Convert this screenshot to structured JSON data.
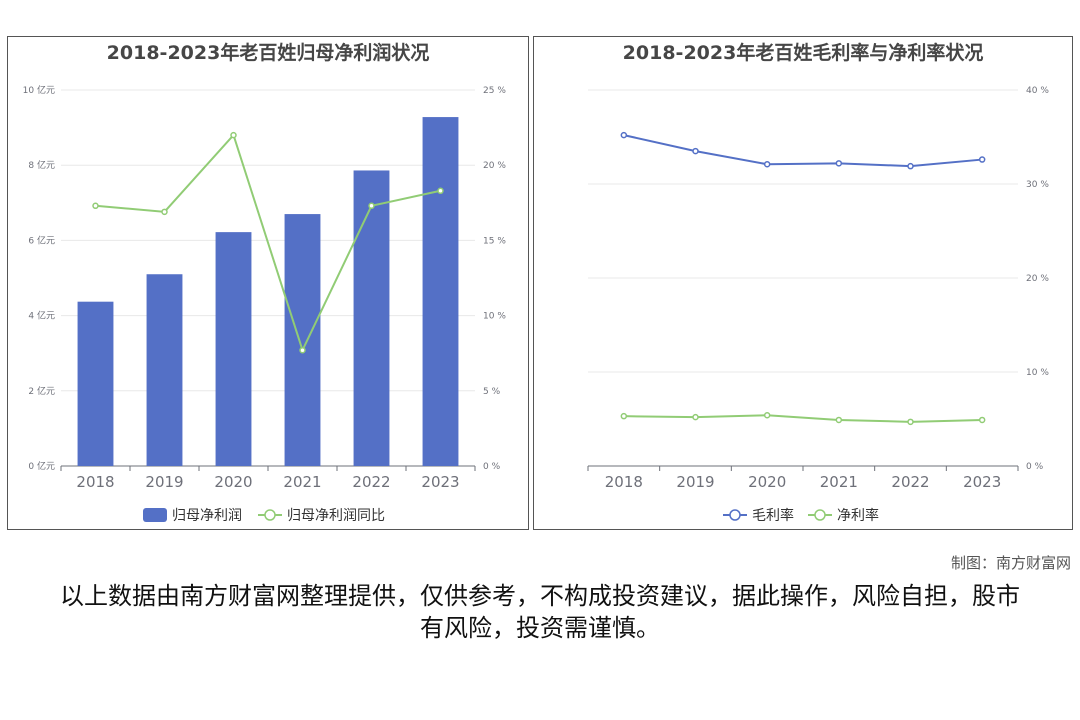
{
  "credit": "制图：南方财富网",
  "disclaimer": "以上数据由南方财富网整理提供，仅供参考，不构成投资建议，据此操作，风险自担，股市有风险，投资需谨慎。",
  "colors": {
    "bar": "#5470c6",
    "line_green": "#91cc75",
    "line_blue": "#5470c6",
    "grid": "#e8e8e8",
    "axis": "#6e7079"
  },
  "chart_data": [
    {
      "type": "bar",
      "title": "2018-2023年老百姓归母净利润状况",
      "categories": [
        "2018",
        "2019",
        "2020",
        "2021",
        "2022",
        "2023"
      ],
      "y_left": {
        "ticks": [
          "0 亿元",
          "2 亿元",
          "4 亿元",
          "6 亿元",
          "8 亿元",
          "10 亿元"
        ],
        "range": [
          0,
          10
        ]
      },
      "y_right": {
        "ticks": [
          "0 %",
          "5 %",
          "10 %",
          "15 %",
          "20 %",
          "25 %"
        ],
        "range": [
          0,
          25
        ]
      },
      "series": [
        {
          "name": "归母净利润",
          "kind": "bar",
          "axis": "left",
          "values": [
            4.37,
            5.1,
            6.22,
            6.7,
            7.86,
            9.28
          ]
        },
        {
          "name": "归母净利润同比",
          "kind": "line",
          "axis": "right",
          "values": [
            17.3,
            16.9,
            22.0,
            7.7,
            17.3,
            18.3
          ]
        }
      ],
      "legend": "bottom-center",
      "grid": true
    },
    {
      "type": "line",
      "title": "2018-2023年老百姓毛利率与净利率状况",
      "categories": [
        "2018",
        "2019",
        "2020",
        "2021",
        "2022",
        "2023"
      ],
      "y_right": {
        "ticks": [
          "0 %",
          "10 %",
          "20 %",
          "30 %",
          "40 %"
        ],
        "range": [
          0,
          40
        ]
      },
      "series": [
        {
          "name": "毛利率",
          "kind": "line",
          "axis": "right",
          "values": [
            35.2,
            33.5,
            32.1,
            32.2,
            31.9,
            32.6
          ]
        },
        {
          "name": "净利率",
          "kind": "line",
          "axis": "right",
          "values": [
            5.3,
            5.2,
            5.4,
            4.9,
            4.7,
            4.9
          ]
        }
      ],
      "legend": "bottom-center",
      "grid": true
    }
  ]
}
